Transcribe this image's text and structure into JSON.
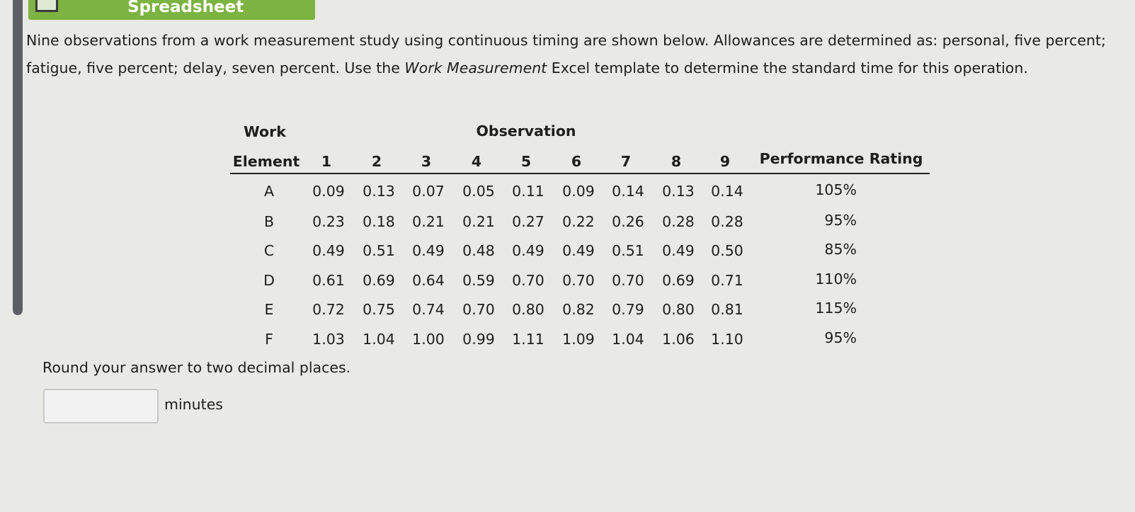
{
  "header": {
    "title": "Spreadsheet"
  },
  "problem": {
    "text_before": "Nine observations from a work measurement study using continuous timing are shown below. Allowances are determined as: personal, five percent; fatigue, five percent; delay, seven percent. Use the ",
    "italic": "Work Measurement",
    "text_after": " Excel template to determine the standard time for this operation."
  },
  "table": {
    "group_headers": {
      "work": "Work",
      "observation": "Observation"
    },
    "columns": [
      "Element",
      "1",
      "2",
      "3",
      "4",
      "5",
      "6",
      "7",
      "8",
      "9",
      "Performance Rating"
    ],
    "rows": [
      [
        "A",
        "0.09",
        "0.13",
        "0.07",
        "0.05",
        "0.11",
        "0.09",
        "0.14",
        "0.13",
        "0.14",
        "105%"
      ],
      [
        "B",
        "0.23",
        "0.18",
        "0.21",
        "0.21",
        "0.27",
        "0.22",
        "0.26",
        "0.28",
        "0.28",
        "95%"
      ],
      [
        "C",
        "0.49",
        "0.51",
        "0.49",
        "0.48",
        "0.49",
        "0.49",
        "0.51",
        "0.49",
        "0.50",
        "85%"
      ],
      [
        "D",
        "0.61",
        "0.69",
        "0.64",
        "0.59",
        "0.70",
        "0.70",
        "0.70",
        "0.69",
        "0.71",
        "110%"
      ],
      [
        "E",
        "0.72",
        "0.75",
        "0.74",
        "0.70",
        "0.80",
        "0.82",
        "0.79",
        "0.80",
        "0.81",
        "115%"
      ],
      [
        "F",
        "1.03",
        "1.04",
        "1.00",
        "0.99",
        "1.11",
        "1.09",
        "1.04",
        "1.06",
        "1.10",
        "95%"
      ]
    ]
  },
  "instruction": "Round your answer to two decimal places.",
  "answer": {
    "unit": "minutes"
  }
}
